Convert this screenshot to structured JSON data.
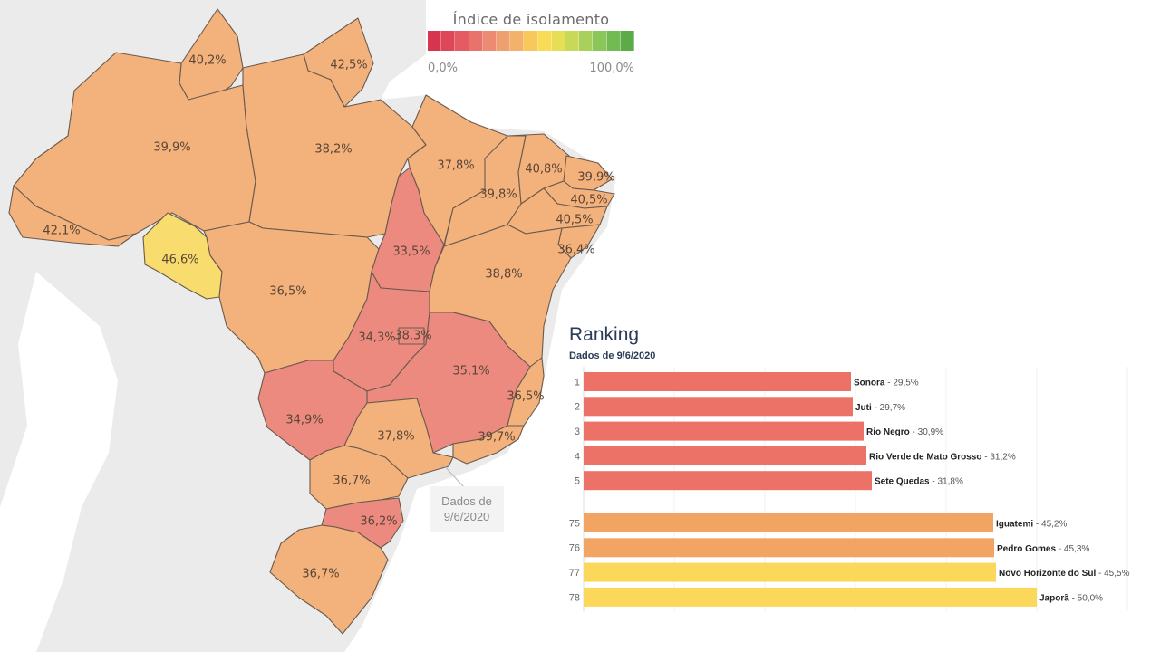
{
  "legend": {
    "title": "Índice de isolamento",
    "min_label": "0,0%",
    "max_label": "100,0%",
    "colors": [
      "#d7344f",
      "#de4757",
      "#e35b63",
      "#e8736d",
      "#ec8a72",
      "#efa06f",
      "#f3b26a",
      "#f7c95c",
      "#f8dc55",
      "#e6de55",
      "#c8d95a",
      "#a9d05b",
      "#8bc65a",
      "#72bb53",
      "#5daa48"
    ]
  },
  "date_note": {
    "line1": "Dados de",
    "line2": "9/6/2020"
  },
  "colors": {
    "orange": "#f3b17c",
    "red": "#ec8a80",
    "yellow": "#f8dc6e",
    "background_land": "#ebebeb",
    "bar_red": "#ec7167",
    "bar_orange": "#f2a463",
    "bar_yellow": "#fbd85a"
  },
  "states": [
    {
      "id": "RR",
      "label": "40,2%",
      "color": "orange"
    },
    {
      "id": "AP",
      "label": "42,5%",
      "color": "orange"
    },
    {
      "id": "AM",
      "label": "39,9%",
      "color": "orange"
    },
    {
      "id": "PA",
      "label": "38,2%",
      "color": "orange"
    },
    {
      "id": "AC",
      "label": "42,1%",
      "color": "orange"
    },
    {
      "id": "RO",
      "label": "46,6%",
      "color": "yellow"
    },
    {
      "id": "MT",
      "label": "36,5%",
      "color": "orange"
    },
    {
      "id": "TO",
      "label": "33,5%",
      "color": "red"
    },
    {
      "id": "MA",
      "label": "37,8%",
      "color": "orange"
    },
    {
      "id": "PI",
      "label": "39,8%",
      "color": "orange"
    },
    {
      "id": "CE",
      "label": "40,8%",
      "color": "orange"
    },
    {
      "id": "RN",
      "label": "39,9%",
      "color": "orange"
    },
    {
      "id": "PB",
      "label": "40,5%",
      "color": "orange"
    },
    {
      "id": "PE",
      "label": "40,5%",
      "color": "orange"
    },
    {
      "id": "AL",
      "label": "36,4%",
      "color": "orange"
    },
    {
      "id": "BA",
      "label": "38,8%",
      "color": "orange"
    },
    {
      "id": "GO",
      "label": "34,3%",
      "color": "red"
    },
    {
      "id": "DF",
      "label": "38,3%",
      "color": "red"
    },
    {
      "id": "MG",
      "label": "35,1%",
      "color": "red"
    },
    {
      "id": "ES",
      "label": "36,5%",
      "color": "orange"
    },
    {
      "id": "RJ",
      "label": "39,7%",
      "color": "orange"
    },
    {
      "id": "MS",
      "label": "34,9%",
      "color": "red"
    },
    {
      "id": "SP",
      "label": "37,8%",
      "color": "orange"
    },
    {
      "id": "PR",
      "label": "36,7%",
      "color": "orange"
    },
    {
      "id": "SC",
      "label": "36,2%",
      "color": "red"
    },
    {
      "id": "RS",
      "label": "36,7%",
      "color": "orange"
    }
  ],
  "ranking": {
    "title": "Ranking",
    "subtitle": "Dados de 9/6/2020"
  },
  "chart_data": {
    "type": "bar",
    "orientation": "horizontal",
    "title": "Ranking",
    "subtitle": "Dados de 9/6/2020",
    "xlim": [
      0,
      60
    ],
    "grid": true,
    "items": [
      {
        "rank": "1",
        "name": "Sonora",
        "value": 29.5,
        "label": "29,5%",
        "color": "bar_red"
      },
      {
        "rank": "2",
        "name": "Juti",
        "value": 29.7,
        "label": "29,7%",
        "color": "bar_red"
      },
      {
        "rank": "3",
        "name": "Rio Negro",
        "value": 30.9,
        "label": "30,9%",
        "color": "bar_red"
      },
      {
        "rank": "4",
        "name": "Rio Verde de Mato Grosso",
        "value": 31.2,
        "label": "31,2%",
        "color": "bar_red"
      },
      {
        "rank": "5",
        "name": "Sete Quedas",
        "value": 31.8,
        "label": "31,8%",
        "color": "bar_red"
      },
      {
        "rank": "75",
        "name": "Iguatemi",
        "value": 45.2,
        "label": "45,2%",
        "color": "bar_orange"
      },
      {
        "rank": "76",
        "name": "Pedro Gomes",
        "value": 45.3,
        "label": "45,3%",
        "color": "bar_orange"
      },
      {
        "rank": "77",
        "name": "Novo Horizonte do Sul",
        "value": 45.5,
        "label": "45,5%",
        "color": "bar_yellow"
      },
      {
        "rank": "78",
        "name": "Japorã",
        "value": 50.0,
        "label": "50,0%",
        "color": "bar_yellow"
      }
    ]
  }
}
